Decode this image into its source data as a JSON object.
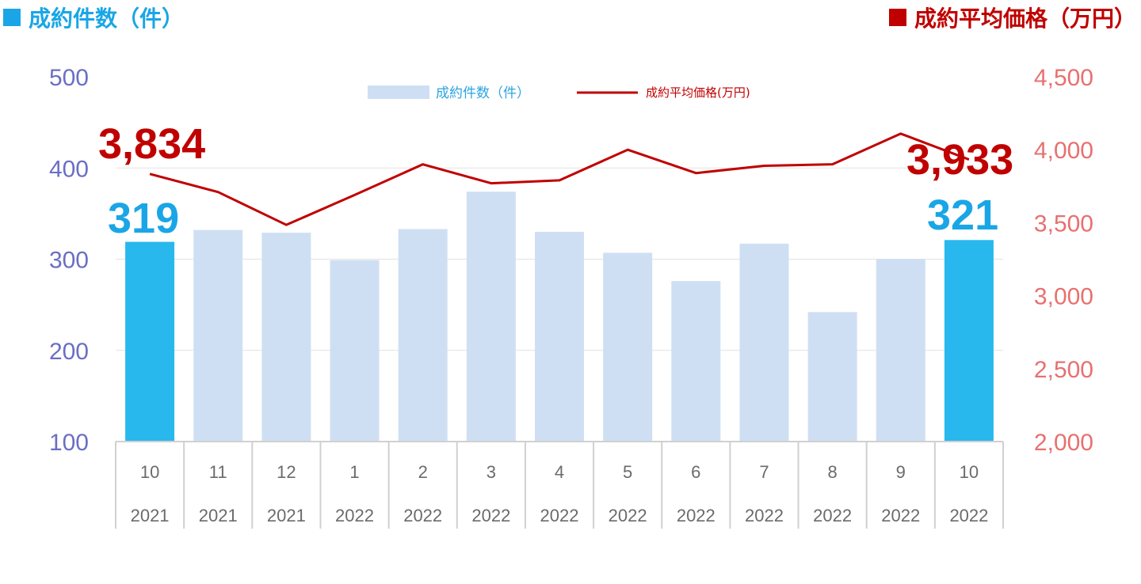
{
  "header": {
    "left_title": "成約件数（件）",
    "right_title": "成約平均価格（万円）"
  },
  "colors": {
    "bar_default": "#cfdff3",
    "bar_highlight": "#29b8ee",
    "line": "#c00000",
    "left_axis": "#6a6fc4",
    "right_axis": "#e87070",
    "callout_count": "#1aa6e6",
    "callout_price": "#c00000"
  },
  "chart_data": {
    "type": "bar",
    "categories": [
      [
        "10",
        "2021"
      ],
      [
        "11",
        "2021"
      ],
      [
        "12",
        "2021"
      ],
      [
        "1",
        "2022"
      ],
      [
        "2",
        "2022"
      ],
      [
        "3",
        "2022"
      ],
      [
        "4",
        "2022"
      ],
      [
        "5",
        "2022"
      ],
      [
        "6",
        "2022"
      ],
      [
        "7",
        "2022"
      ],
      [
        "8",
        "2022"
      ],
      [
        "9",
        "2022"
      ],
      [
        "10",
        "2022"
      ]
    ],
    "series": [
      {
        "name": "成約件数（件）",
        "type": "bar",
        "axis": "left",
        "values": [
          319,
          332,
          329,
          299,
          333,
          374,
          330,
          307,
          276,
          317,
          242,
          300,
          321
        ],
        "highlight_indices": [
          0,
          12
        ]
      },
      {
        "name": "成約平均価格(万円)",
        "type": "line",
        "axis": "right",
        "values": [
          3834,
          3710,
          3485,
          3690,
          3900,
          3770,
          3790,
          4000,
          3840,
          3890,
          3900,
          4110,
          3933
        ]
      }
    ],
    "left_axis": {
      "ylim": [
        100,
        500
      ],
      "ticks": [
        "100",
        "200",
        "300",
        "400",
        "500"
      ]
    },
    "right_axis": {
      "ylim": [
        2000,
        4500
      ],
      "ticks": [
        "2,000",
        "2,500",
        "3,000",
        "3,500",
        "4,000",
        "4,500"
      ]
    },
    "callouts": {
      "count_start": "319",
      "count_end": "321",
      "price_start": "3,834",
      "price_end": "3,933"
    },
    "grid": true,
    "legend_position": "top-center"
  }
}
